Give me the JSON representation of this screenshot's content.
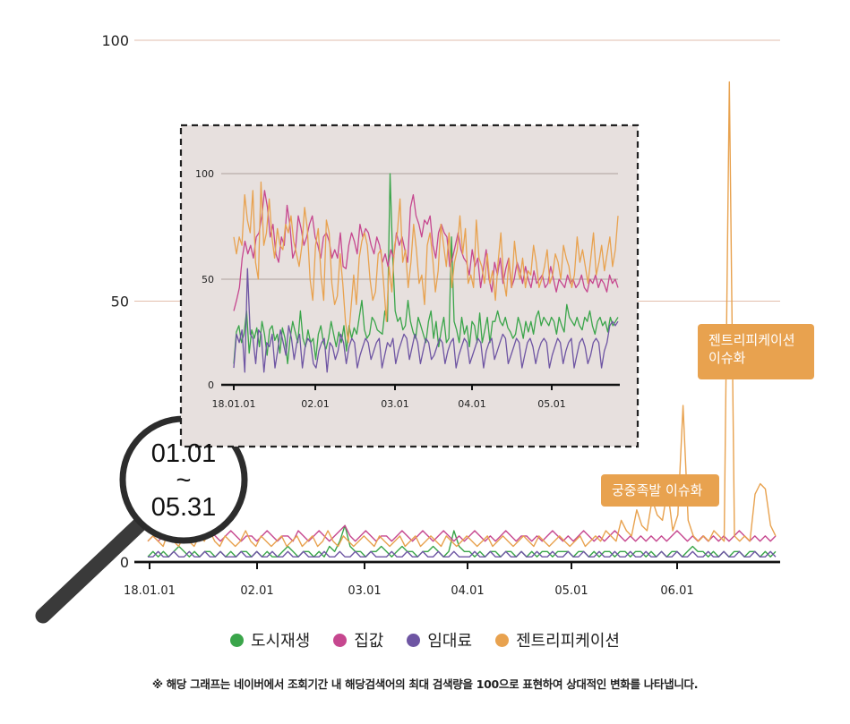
{
  "chart_data": [
    {
      "type": "line",
      "ylim": [
        0,
        100
      ],
      "yticks": [
        "0",
        "50",
        "100"
      ],
      "x_tick_labels": [
        "18.01.01",
        "02.01",
        "03.01",
        "04.01",
        "05.01",
        "06.01"
      ],
      "x_start": "2018-01-01",
      "x_end": "2018-06-30",
      "grid": "horizontal",
      "series": [
        {
          "name": "도시재생",
          "color": "#3aa54a",
          "values": [
            1,
            2,
            1,
            2,
            1,
            2,
            3,
            2,
            1,
            2,
            1,
            2,
            2,
            1,
            2,
            1,
            2,
            1,
            2,
            2,
            1,
            2,
            1,
            2,
            1,
            1,
            2,
            3,
            2,
            1,
            2,
            2,
            1,
            2,
            1,
            3,
            2,
            4,
            7,
            3,
            2,
            2,
            1,
            2,
            2,
            3,
            2,
            1,
            2,
            3,
            2,
            2,
            1,
            2,
            2,
            3,
            2,
            1,
            2,
            6,
            3,
            2,
            2,
            1,
            2,
            1,
            2,
            2,
            1,
            2,
            2,
            1,
            2,
            1,
            2,
            1,
            2,
            2,
            1,
            2,
            2,
            2,
            1,
            2,
            2,
            1,
            2,
            1,
            2,
            2,
            1,
            2,
            2,
            1,
            2,
            2,
            1,
            2,
            1,
            2,
            1,
            2,
            2,
            1,
            2,
            3,
            2,
            2,
            1,
            2,
            1,
            2,
            1,
            2,
            2,
            1,
            2,
            2,
            1,
            2,
            1,
            2
          ]
        },
        {
          "name": "집값",
          "color": "#c6478f",
          "values": [
            4,
            5,
            4,
            5,
            6,
            5,
            4,
            5,
            6,
            5,
            4,
            5,
            6,
            5,
            4,
            5,
            6,
            5,
            4,
            5,
            5,
            4,
            5,
            6,
            5,
            4,
            5,
            5,
            4,
            6,
            5,
            4,
            5,
            6,
            5,
            4,
            5,
            6,
            7,
            5,
            4,
            5,
            6,
            5,
            4,
            5,
            5,
            4,
            5,
            6,
            5,
            4,
            5,
            6,
            5,
            4,
            5,
            6,
            5,
            4,
            5,
            4,
            5,
            6,
            5,
            4,
            5,
            4,
            5,
            6,
            5,
            4,
            5,
            5,
            4,
            5,
            4,
            5,
            6,
            5,
            4,
            5,
            4,
            5,
            6,
            5,
            4,
            5,
            4,
            5,
            6,
            5,
            4,
            5,
            4,
            5,
            4,
            5,
            4,
            5,
            4,
            5,
            6,
            5,
            4,
            5,
            4,
            5,
            4,
            5,
            4,
            5,
            4,
            5,
            6,
            5,
            4,
            5,
            4,
            5,
            4,
            5
          ]
        },
        {
          "name": "임대료",
          "color": "#6e55a3",
          "values": [
            1,
            1,
            2,
            1,
            1,
            2,
            1,
            1,
            2,
            1,
            1,
            2,
            1,
            1,
            2,
            1,
            1,
            1,
            2,
            1,
            1,
            2,
            1,
            1,
            2,
            1,
            1,
            2,
            1,
            1,
            2,
            1,
            1,
            1,
            2,
            1,
            1,
            2,
            1,
            1,
            2,
            1,
            1,
            2,
            1,
            1,
            1,
            2,
            1,
            1,
            2,
            1,
            1,
            2,
            1,
            1,
            2,
            1,
            1,
            2,
            1,
            1,
            1,
            2,
            1,
            1,
            2,
            1,
            1,
            2,
            1,
            1,
            2,
            1,
            1,
            2,
            1,
            1,
            2,
            1,
            1,
            2,
            1,
            1,
            2,
            1,
            1,
            2,
            1,
            1,
            2,
            1,
            1,
            2,
            1,
            1,
            2,
            1,
            1,
            2,
            1,
            1,
            2,
            1,
            1,
            2,
            1,
            1,
            2,
            1,
            1,
            2,
            1,
            1,
            2,
            1,
            1,
            2,
            1,
            1,
            2,
            1
          ]
        },
        {
          "name": "젠트리피케이션",
          "color": "#e8a24f",
          "values": [
            4,
            5,
            4,
            3,
            6,
            4,
            3,
            5,
            4,
            3,
            5,
            4,
            6,
            4,
            3,
            5,
            4,
            3,
            4,
            6,
            4,
            3,
            5,
            4,
            3,
            4,
            5,
            3,
            4,
            5,
            3,
            4,
            5,
            3,
            4,
            6,
            4,
            3,
            5,
            4,
            3,
            4,
            5,
            4,
            3,
            5,
            4,
            3,
            4,
            5,
            3,
            4,
            5,
            3,
            4,
            5,
            4,
            3,
            5,
            4,
            3,
            4,
            5,
            4,
            3,
            4,
            5,
            3,
            4,
            5,
            4,
            3,
            4,
            5,
            4,
            3,
            5,
            4,
            3,
            4,
            5,
            4,
            3,
            4,
            5,
            3,
            4,
            5,
            4,
            6,
            5,
            4,
            8,
            6,
            5,
            10,
            7,
            6,
            12,
            9,
            8,
            14,
            6,
            9,
            30,
            8,
            5,
            4,
            5,
            4,
            6,
            5,
            4,
            92,
            5,
            4,
            5,
            4,
            13,
            15,
            14,
            7,
            5
          ]
        }
      ]
    },
    {
      "type": "line",
      "ylim": [
        0,
        100
      ],
      "yticks": [
        "0",
        "50",
        "100"
      ],
      "x_tick_labels": [
        "18.01.01",
        "02.01",
        "03.01",
        "04.01",
        "05.01"
      ],
      "x_start": "2018-01-01",
      "x_end": "2018-05-31",
      "grid": "horizontal",
      "series": [
        {
          "name": "도시재생",
          "color": "#3aa54a",
          "values": [
            10,
            25,
            28,
            20,
            24,
            35,
            15,
            26,
            22,
            27,
            18,
            30,
            24,
            14,
            26,
            28,
            21,
            24,
            15,
            27,
            22,
            10,
            22,
            30,
            25,
            20,
            35,
            22,
            18,
            26,
            20,
            22,
            12,
            24,
            28,
            20,
            17,
            22,
            30,
            24,
            18,
            25,
            20,
            28,
            16,
            28,
            22,
            27,
            24,
            32,
            40,
            26,
            22,
            24,
            32,
            30,
            26,
            25,
            24,
            35,
            30,
            100,
            62,
            35,
            30,
            32,
            26,
            28,
            40,
            30,
            25,
            22,
            32,
            28,
            24,
            20,
            30,
            35,
            22,
            30,
            18,
            26,
            32,
            20,
            22,
            70,
            30,
            26,
            20,
            32,
            24,
            28,
            18,
            30,
            28,
            20,
            34,
            20,
            26,
            32,
            20,
            30,
            30,
            35,
            30,
            28,
            32,
            27,
            25,
            22,
            24,
            32,
            28,
            22,
            30,
            25,
            30,
            24,
            32,
            35,
            28,
            32,
            30,
            28,
            32,
            30,
            24,
            32,
            28,
            25,
            38,
            32,
            30,
            28,
            32,
            28,
            26,
            32,
            30,
            35,
            28,
            24,
            30,
            32,
            28,
            30,
            25,
            32,
            28,
            30,
            32
          ]
        },
        {
          "name": "집값",
          "color": "#c6478f",
          "values": [
            35,
            40,
            46,
            60,
            68,
            62,
            66,
            60,
            70,
            72,
            80,
            92,
            84,
            70,
            76,
            62,
            58,
            70,
            66,
            85,
            76,
            60,
            64,
            80,
            74,
            66,
            70,
            76,
            80,
            70,
            66,
            60,
            70,
            72,
            68,
            60,
            64,
            60,
            72,
            56,
            55,
            66,
            72,
            68,
            62,
            76,
            70,
            74,
            72,
            66,
            62,
            70,
            66,
            58,
            62,
            56,
            64,
            60,
            72,
            66,
            70,
            64,
            58,
            84,
            90,
            80,
            76,
            70,
            78,
            76,
            80,
            66,
            60,
            72,
            76,
            72,
            70,
            56,
            60,
            66,
            72,
            64,
            60,
            58,
            52,
            64,
            56,
            60,
            46,
            55,
            64,
            50,
            44,
            58,
            52,
            60,
            48,
            55,
            60,
            46,
            50,
            58,
            54,
            48,
            56,
            50,
            46,
            54,
            48,
            50,
            52,
            46,
            48,
            56,
            50,
            44,
            50,
            48,
            46,
            52,
            48,
            50,
            46,
            48,
            52,
            46,
            44,
            50,
            48,
            52,
            46,
            50,
            48,
            44,
            52,
            48,
            50,
            46
          ]
        },
        {
          "name": "임대료",
          "color": "#6e55a3",
          "values": [
            8,
            24,
            20,
            26,
            6,
            55,
            24,
            22,
            10,
            26,
            24,
            6,
            20,
            18,
            24,
            8,
            16,
            26,
            20,
            14,
            28,
            22,
            12,
            20,
            24,
            8,
            18,
            22,
            20,
            10,
            8,
            16,
            20,
            22,
            6,
            20,
            18,
            12,
            16,
            24,
            20,
            10,
            18,
            22,
            20,
            8,
            14,
            18,
            22,
            20,
            12,
            16,
            20,
            22,
            8,
            14,
            20,
            18,
            22,
            10,
            16,
            20,
            24,
            22,
            12,
            18,
            24,
            20,
            10,
            16,
            22,
            20,
            12,
            14,
            18,
            22,
            20,
            10,
            16,
            20,
            22,
            8,
            14,
            18,
            22,
            20,
            10,
            14,
            18,
            22,
            20,
            8,
            16,
            20,
            22,
            12,
            16,
            20,
            24,
            22,
            10,
            14,
            18,
            22,
            20,
            8,
            14,
            20,
            22,
            18,
            10,
            16,
            20,
            22,
            20,
            8,
            14,
            18,
            22,
            20,
            10,
            16,
            20,
            22,
            8,
            14,
            20,
            22,
            18,
            10,
            14,
            20,
            22,
            20,
            8,
            16,
            20,
            28,
            30,
            28,
            30
          ]
        },
        {
          "name": "젠트리피케이션",
          "color": "#e8a24f",
          "values": [
            70,
            62,
            70,
            66,
            90,
            78,
            72,
            92,
            58,
            50,
            96,
            66,
            72,
            88,
            70,
            60,
            74,
            66,
            64,
            76,
            72,
            80,
            68,
            62,
            56,
            66,
            84,
            74,
            50,
            40,
            66,
            74,
            52,
            40,
            78,
            72,
            48,
            38,
            42,
            62,
            48,
            30,
            20,
            36,
            52,
            38,
            60,
            68,
            72,
            66,
            50,
            40,
            44,
            62,
            64,
            48,
            30,
            56,
            44,
            66,
            72,
            88,
            58,
            64,
            46,
            58,
            76,
            64,
            48,
            52,
            38,
            66,
            72,
            60,
            44,
            54,
            76,
            66,
            56,
            72,
            46,
            58,
            64,
            80,
            62,
            74,
            48,
            52,
            46,
            78,
            60,
            56,
            48,
            62,
            48,
            54,
            40,
            58,
            72,
            50,
            42,
            60,
            46,
            68,
            56,
            50,
            60,
            46,
            54,
            52,
            66,
            58,
            46,
            50,
            56,
            64,
            48,
            52,
            62,
            58,
            50,
            66,
            60,
            56,
            46,
            52,
            70,
            58,
            64,
            56,
            48,
            60,
            72,
            52,
            58,
            66,
            54,
            62,
            70,
            56,
            64,
            80
          ]
        }
      ]
    }
  ],
  "callouts": {
    "gentrification": {
      "line1": "젠트리피케이션",
      "line2": "이슈화"
    },
    "palace": "궁중족발 이슈화"
  },
  "magnifier": {
    "line1": "01.01",
    "line2": "~",
    "line3": "05.31"
  },
  "legend": [
    {
      "label": "도시재생",
      "color": "#3aa54a"
    },
    {
      "label": "집값",
      "color": "#c6478f"
    },
    {
      "label": "임대료",
      "color": "#6e55a3"
    },
    {
      "label": "젠트리피케이션",
      "color": "#e8a24f"
    }
  ],
  "footnote": "※ 해당 그래프는 네이버에서 조회기간 내 해당검색어의 최대 검색량을 100으로 표현하여 상대적인 변화를 나타냅니다.",
  "colors": {
    "inset_background": "#e7e0de",
    "grid": "#d8a890",
    "axis": "#111111"
  }
}
